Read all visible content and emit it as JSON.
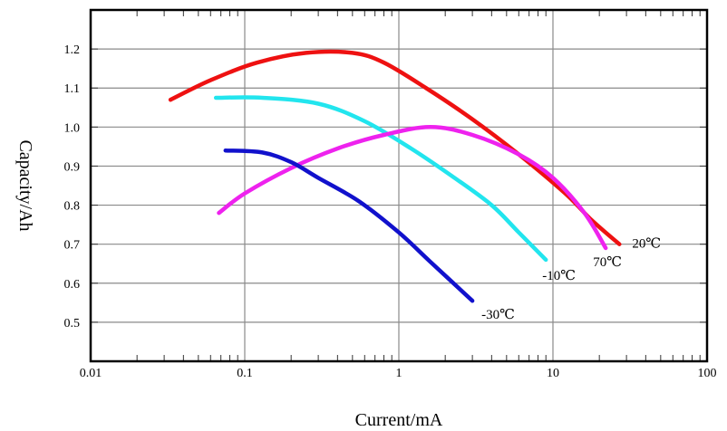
{
  "chart_data": {
    "type": "line",
    "title": "",
    "xlabel": "Current/mA",
    "ylabel": "Capacity/Ah",
    "x_scale": "log",
    "xlim": [
      0.01,
      100
    ],
    "ylim": [
      0.4,
      1.3
    ],
    "x_ticks": [
      {
        "value": 0.01,
        "label": "0.01"
      },
      {
        "value": 0.1,
        "label": "0.1"
      },
      {
        "value": 1,
        "label": "1"
      },
      {
        "value": 10,
        "label": "10"
      },
      {
        "value": 100,
        "label": "100"
      }
    ],
    "y_ticks": [
      {
        "value": 0.5,
        "label": "0.5"
      },
      {
        "value": 0.6,
        "label": "0.6"
      },
      {
        "value": 0.7,
        "label": "0.7"
      },
      {
        "value": 0.8,
        "label": "0.8"
      },
      {
        "value": 0.9,
        "label": "0.9"
      },
      {
        "value": 1.0,
        "label": "1.0"
      },
      {
        "value": 1.1,
        "label": "1.1"
      },
      {
        "value": 1.2,
        "label": "1.2"
      }
    ],
    "grid": true,
    "legend": "labels at line ends",
    "series": [
      {
        "name": "20℃",
        "color": "#ee1111",
        "points": [
          [
            0.033,
            1.07
          ],
          [
            0.06,
            1.12
          ],
          [
            0.12,
            1.165
          ],
          [
            0.25,
            1.19
          ],
          [
            0.5,
            1.19
          ],
          [
            0.8,
            1.165
          ],
          [
            1.5,
            1.1
          ],
          [
            3,
            1.02
          ],
          [
            6,
            0.93
          ],
          [
            12,
            0.83
          ],
          [
            18,
            0.76
          ],
          [
            27,
            0.7
          ]
        ]
      },
      {
        "name": "-10℃",
        "color": "#22e5ee",
        "points": [
          [
            0.065,
            1.075
          ],
          [
            0.13,
            1.075
          ],
          [
            0.3,
            1.06
          ],
          [
            0.6,
            1.015
          ],
          [
            1.2,
            0.945
          ],
          [
            2.2,
            0.875
          ],
          [
            4,
            0.8
          ],
          [
            6,
            0.73
          ],
          [
            9,
            0.66
          ]
        ]
      },
      {
        "name": "70℃",
        "color": "#ee22ee",
        "points": [
          [
            0.068,
            0.78
          ],
          [
            0.1,
            0.83
          ],
          [
            0.2,
            0.895
          ],
          [
            0.4,
            0.945
          ],
          [
            0.8,
            0.98
          ],
          [
            1.6,
            1.0
          ],
          [
            3,
            0.98
          ],
          [
            6,
            0.93
          ],
          [
            10,
            0.87
          ],
          [
            16,
            0.78
          ],
          [
            22,
            0.69
          ]
        ]
      },
      {
        "name": "-30℃",
        "color": "#1111cc",
        "points": [
          [
            0.075,
            0.94
          ],
          [
            0.13,
            0.935
          ],
          [
            0.2,
            0.91
          ],
          [
            0.3,
            0.87
          ],
          [
            0.55,
            0.81
          ],
          [
            1,
            0.73
          ],
          [
            1.6,
            0.655
          ],
          [
            3,
            0.555
          ]
        ]
      }
    ]
  }
}
